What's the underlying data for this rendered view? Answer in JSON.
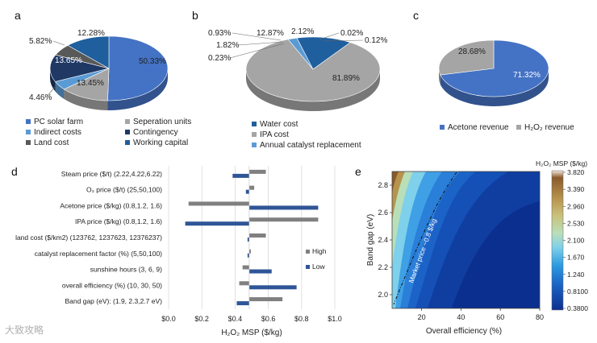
{
  "colors": {
    "blue": "#4472c4",
    "dark_blue": "#2e4f8f",
    "navy": "#1f3864",
    "gray": "#a5a5a5",
    "dark_gray": "#595959",
    "light_blue": "#5b9bd5",
    "steel_blue": "#1f5f9e",
    "high_bar": "#808080",
    "low_bar": "#2f5597"
  },
  "panels": {
    "a": "a",
    "b": "b",
    "c": "c",
    "d": "d",
    "e": "e"
  },
  "watermark": "大致攻略",
  "chart_data": [
    {
      "id": "a",
      "type": "pie",
      "slices": [
        {
          "label": "PC solar farm",
          "value": 50.33,
          "pct_label": "50.33%",
          "color": "#4472c4"
        },
        {
          "label": "Seperation units",
          "value": 13.45,
          "pct_label": "13.45%",
          "color": "#a5a5a5"
        },
        {
          "label": "Indirect costs",
          "value": 4.46,
          "pct_label": "4.46%",
          "color": "#5b9bd5"
        },
        {
          "label": "Contingency",
          "value": 13.65,
          "pct_label": "13.65%",
          "color": "#1f3864"
        },
        {
          "label": "Land cost",
          "value": 5.82,
          "pct_label": "5.82%",
          "color": "#595959"
        },
        {
          "label": "Working capital",
          "value": 12.28,
          "pct_label": "12.28%",
          "color": "#1f5f9e"
        }
      ],
      "legend_placement": "bottom"
    },
    {
      "id": "b",
      "type": "pie",
      "slices": [
        {
          "label": "Water cost",
          "value": 12.87,
          "pct_label": "12.87%",
          "color": "#1f5f9e"
        },
        {
          "label": "IPA cost",
          "value": 81.89,
          "pct_label": "81.89%",
          "color": "#a5a5a5"
        },
        {
          "label": "Annual catalyst replacement",
          "value": 2.12,
          "pct_label": "2.12%",
          "color": "#5b9bd5"
        }
      ],
      "other_labels": [
        "0.93%",
        "1.82%",
        "0.23%",
        "0.02%",
        "0.12%"
      ],
      "legend_placement": "bottom"
    },
    {
      "id": "c",
      "type": "pie",
      "slices": [
        {
          "label": "Acetone revenue",
          "value": 71.32,
          "pct_label": "71.32%",
          "color": "#4472c4"
        },
        {
          "label": "H₂O₂ revenue",
          "value": 28.68,
          "pct_label": "28.68%",
          "color": "#a5a5a5"
        }
      ],
      "legend_placement": "bottom"
    },
    {
      "id": "d",
      "type": "bar",
      "orientation": "horizontal",
      "categories": [
        "Steam price ($/t) (2.22,4.22,6.22)",
        "O₂ price ($/t)    (25,50,100)",
        "Acetone price ($/kg)  (0.8,1.2, 1.6)",
        "IPA price ($/kg) (0.8,1.2, 1.6)",
        "land cost ($/km2) (123762, 1237623, 12376237)",
        "catalyst replacement factor (%) (5,50,100)",
        "sunshine hours (3, 6, 9)",
        "overall efficiency (%) (10, 30, 50)",
        "Band gap (eV): (1.9, 2.3,2.7 eV)"
      ],
      "baseline": 0.485,
      "series": [
        {
          "name": "High",
          "values": [
            0.585,
            0.515,
            0.12,
            0.9,
            0.585,
            0.495,
            0.445,
            0.425,
            0.685
          ]
        },
        {
          "name": "Low",
          "values": [
            0.385,
            0.465,
            0.9,
            0.1,
            0.475,
            0.475,
            0.62,
            0.77,
            0.41
          ]
        }
      ],
      "xlabel": "H₂O₂ MSP ($/kg)",
      "xlim": [
        0.0,
        1.0
      ],
      "xticks": [
        "$0.0",
        "$0.2",
        "$0.4",
        "$0.6",
        "$0.8",
        "$1.0"
      ],
      "grid": true,
      "legend_placement": "right"
    },
    {
      "id": "e",
      "type": "heatmap",
      "xlabel": "Overall efficiency (%)",
      "ylabel": "Band gap (eV)",
      "xlim": [
        5,
        80
      ],
      "ylim": [
        1.9,
        2.9
      ],
      "xticks": [
        "20",
        "40",
        "60",
        "80"
      ],
      "yticks": [
        "2.0",
        "2.2",
        "2.4",
        "2.6",
        "2.8"
      ],
      "colorbar_title": "H₂O₂ MSP ($/kg)",
      "colorbar_ticks": [
        "3.820",
        "3.390",
        "2.960",
        "2.530",
        "2.100",
        "1.670",
        "1.240",
        "0.8100",
        "0.3800"
      ],
      "annotation": "Market price ~0.8 $/kg"
    }
  ]
}
